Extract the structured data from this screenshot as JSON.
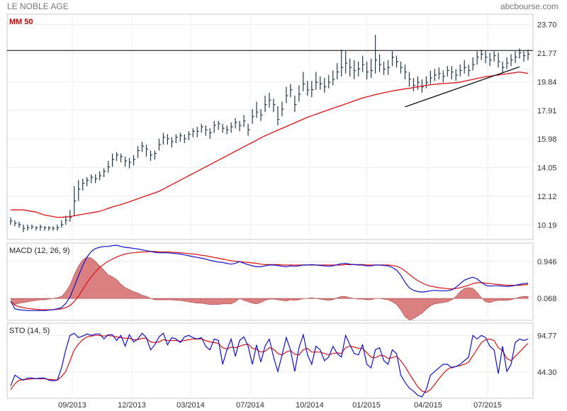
{
  "header": {
    "title": "LE NOBLE AGE",
    "source": "abcbourse.com"
  },
  "colors": {
    "price": "#1f3a4d",
    "ma": "#dd1111",
    "macd": "#1111cc",
    "signal": "#dd1111",
    "hist": "#d46a6a",
    "sto_k": "#1111cc",
    "sto_d": "#dd1111",
    "resistance": "#000000",
    "trend": "#000000"
  },
  "chart_data": [
    {
      "type": "line",
      "panel": "price",
      "label": "MM 50",
      "y_ticks": [
        "23.70",
        "21.77",
        "19.84",
        "17.91",
        "15.98",
        "14.05",
        "12.12",
        "10.19"
      ],
      "ylim": [
        9.2,
        24.4
      ],
      "x_ticks": [
        "09/2013",
        "12/2013",
        "03/2014",
        "07/2014",
        "10/2014",
        "01/2015",
        "04/2015",
        "07/2015"
      ],
      "price_close": [
        10.45,
        10.3,
        10.2,
        9.95,
        10.0,
        10.05,
        10.0,
        10.05,
        10.0,
        9.98,
        9.95,
        10.0,
        10.2,
        10.5,
        10.7,
        11.8,
        12.6,
        13.0,
        13.2,
        13.4,
        13.3,
        13.5,
        13.8,
        14.1,
        14.6,
        14.9,
        14.8,
        14.5,
        14.4,
        14.6,
        15.2,
        15.5,
        15.3,
        14.9,
        15.0,
        15.6,
        16.1,
        16.0,
        15.8,
        16.1,
        16.2,
        16.0,
        16.3,
        16.5,
        16.5,
        16.8,
        16.6,
        16.4,
        16.9,
        17.0,
        16.7,
        16.6,
        16.8,
        17.1,
        16.9,
        17.2,
        16.6,
        17.5,
        17.8,
        17.6,
        18.3,
        18.6,
        18.3,
        17.3,
        18.0,
        18.9,
        19.3,
        18.3,
        19.0,
        19.7,
        19.3,
        19.3,
        19.8,
        19.7,
        19.5,
        19.8,
        20.0,
        20.5,
        20.8,
        21.1,
        20.8,
        20.6,
        20.7,
        21.0,
        20.5,
        20.6,
        21.3,
        21.0,
        20.7,
        20.8,
        21.5,
        21.2,
        20.8,
        20.5,
        20.0,
        19.6,
        19.8,
        19.5,
        19.8,
        20.1,
        20.3,
        20.4,
        20.2,
        20.6,
        20.5,
        20.3,
        20.6,
        20.8,
        20.6,
        21.0,
        21.5,
        21.7,
        21.5,
        21.3,
        21.6,
        21.2,
        20.8,
        21.1,
        21.3,
        21.5,
        21.8,
        21.6,
        21.7
      ],
      "price_high": [
        10.7,
        10.5,
        10.4,
        10.2,
        10.2,
        10.2,
        10.1,
        10.2,
        10.1,
        10.1,
        10.1,
        10.2,
        10.5,
        10.8,
        11.2,
        12.8,
        13.2,
        13.3,
        13.4,
        13.6,
        13.6,
        13.8,
        14.0,
        14.5,
        15.0,
        15.1,
        15.0,
        14.8,
        14.7,
        14.9,
        15.5,
        15.8,
        15.6,
        15.2,
        15.2,
        16.0,
        16.4,
        16.3,
        16.1,
        16.3,
        16.4,
        16.3,
        16.5,
        16.7,
        16.8,
        17.0,
        16.9,
        16.7,
        17.2,
        17.2,
        17.0,
        16.9,
        17.1,
        17.4,
        17.2,
        17.6,
        17.0,
        18.0,
        18.5,
        18.0,
        18.9,
        19.1,
        18.7,
        18.2,
        18.5,
        19.5,
        19.7,
        18.9,
        19.6,
        20.5,
        19.9,
        19.9,
        20.5,
        20.2,
        20.1,
        20.3,
        20.6,
        21.1,
        22.0,
        21.9,
        21.4,
        21.3,
        21.2,
        21.6,
        21.2,
        21.4,
        23.0,
        21.7,
        21.2,
        21.3,
        21.9,
        21.6,
        21.2,
        21.0,
        20.5,
        20.1,
        20.2,
        20.0,
        20.2,
        20.6,
        20.7,
        20.8,
        20.6,
        20.9,
        20.9,
        20.7,
        21.0,
        21.3,
        21.0,
        21.5,
        21.9,
        22.0,
        21.9,
        21.8,
        21.9,
        21.8,
        21.2,
        21.5,
        21.7,
        21.9,
        22.1,
        21.9,
        22.0
      ],
      "price_low": [
        10.2,
        10.1,
        10.0,
        9.7,
        9.8,
        9.9,
        9.8,
        9.8,
        9.8,
        9.8,
        9.8,
        9.8,
        10.0,
        10.2,
        10.4,
        10.8,
        11.8,
        12.5,
        12.8,
        13.0,
        13.0,
        13.2,
        13.4,
        13.7,
        14.1,
        14.5,
        14.4,
        14.1,
        14.0,
        14.2,
        14.7,
        15.1,
        14.8,
        14.5,
        14.6,
        15.2,
        15.6,
        15.6,
        15.4,
        15.7,
        15.8,
        15.7,
        15.9,
        16.1,
        16.1,
        16.4,
        16.2,
        16.0,
        16.4,
        16.6,
        16.4,
        16.3,
        16.4,
        16.7,
        16.5,
        16.8,
        16.2,
        17.0,
        17.4,
        17.2,
        17.8,
        18.1,
        17.8,
        16.9,
        17.5,
        18.4,
        18.8,
        17.8,
        18.5,
        19.2,
        18.9,
        18.8,
        19.3,
        19.3,
        19.1,
        19.4,
        19.6,
        20.0,
        20.2,
        20.4,
        20.2,
        20.0,
        20.2,
        20.5,
        20.0,
        20.1,
        20.4,
        20.5,
        20.3,
        20.3,
        20.9,
        20.8,
        20.4,
        20.0,
        19.5,
        19.2,
        19.3,
        19.1,
        19.4,
        19.7,
        19.9,
        20.0,
        19.8,
        20.2,
        20.0,
        19.9,
        20.2,
        20.4,
        20.2,
        20.6,
        21.0,
        21.3,
        21.1,
        20.9,
        21.2,
        20.8,
        20.4,
        20.7,
        20.9,
        21.1,
        21.4,
        21.2,
        21.3
      ],
      "ma_50": [
        11.2,
        11.2,
        11.2,
        11.2,
        11.15,
        11.1,
        11.05,
        10.95,
        10.85,
        10.8,
        10.75,
        10.7,
        10.7,
        10.72,
        10.75,
        10.8,
        10.85,
        10.9,
        10.95,
        11.0,
        11.05,
        11.1,
        11.2,
        11.3,
        11.4,
        11.48,
        11.55,
        11.65,
        11.75,
        11.85,
        11.95,
        12.05,
        12.15,
        12.25,
        12.35,
        12.45,
        12.6,
        12.75,
        12.9,
        13.05,
        13.2,
        13.35,
        13.5,
        13.65,
        13.8,
        13.95,
        14.1,
        14.25,
        14.4,
        14.55,
        14.7,
        14.85,
        15.0,
        15.15,
        15.3,
        15.45,
        15.6,
        15.75,
        15.9,
        16.05,
        16.2,
        16.32,
        16.45,
        16.58,
        16.7,
        16.82,
        16.95,
        17.07,
        17.2,
        17.32,
        17.45,
        17.55,
        17.65,
        17.75,
        17.85,
        17.95,
        18.05,
        18.15,
        18.25,
        18.35,
        18.45,
        18.55,
        18.65,
        18.75,
        18.82,
        18.9,
        18.97,
        19.03,
        19.1,
        19.16,
        19.22,
        19.27,
        19.32,
        19.36,
        19.4,
        19.45,
        19.5,
        19.55,
        19.6,
        19.64,
        19.67,
        19.7,
        19.72,
        19.74,
        19.76,
        19.78,
        19.82,
        19.88,
        19.94,
        20.0,
        20.06,
        20.12,
        20.18,
        20.22,
        20.26,
        20.3,
        20.34,
        20.38,
        20.42,
        20.46,
        20.5,
        20.45,
        20.4
      ],
      "resistance_level": 21.95,
      "trendline": [
        [
          93,
          18.15
        ],
        [
          120,
          20.85
        ]
      ]
    },
    {
      "type": "line",
      "panel": "macd",
      "label": "MACD (12, 26, 9)",
      "y_ticks": [
        "0.946",
        "0.068"
      ],
      "ylim": [
        -0.45,
        1.38
      ],
      "macd": [
        0.01,
        -0.18,
        -0.2,
        -0.21,
        -0.22,
        -0.22,
        -0.22,
        -0.22,
        -0.22,
        -0.21,
        -0.2,
        -0.18,
        -0.15,
        -0.05,
        0.1,
        0.35,
        0.6,
        0.85,
        1.05,
        1.18,
        1.25,
        1.28,
        1.3,
        1.3,
        1.32,
        1.33,
        1.3,
        1.28,
        1.27,
        1.25,
        1.24,
        1.22,
        1.2,
        1.18,
        1.16,
        1.15,
        1.15,
        1.15,
        1.14,
        1.13,
        1.12,
        1.1,
        1.08,
        1.06,
        1.04,
        1.02,
        1.0,
        0.97,
        0.95,
        0.93,
        0.92,
        0.9,
        0.88,
        0.9,
        0.94,
        0.9,
        0.87,
        0.84,
        0.82,
        0.82,
        0.84,
        0.86,
        0.86,
        0.85,
        0.83,
        0.82,
        0.84,
        0.83,
        0.84,
        0.86,
        0.86,
        0.87,
        0.86,
        0.85,
        0.84,
        0.83,
        0.84,
        0.87,
        0.89,
        0.9,
        0.88,
        0.87,
        0.86,
        0.86,
        0.84,
        0.84,
        0.86,
        0.86,
        0.85,
        0.84,
        0.8,
        0.74,
        0.62,
        0.45,
        0.32,
        0.26,
        0.23,
        0.22,
        0.23,
        0.25,
        0.26,
        0.25,
        0.25,
        0.25,
        0.27,
        0.33,
        0.42,
        0.5,
        0.54,
        0.57,
        0.53,
        0.45,
        0.38,
        0.36,
        0.37,
        0.37,
        0.36,
        0.35,
        0.36,
        0.38,
        0.4,
        0.42,
        0.43
      ],
      "signal": [
        0.01,
        -0.09,
        -0.13,
        -0.15,
        -0.17,
        -0.18,
        -0.19,
        -0.2,
        -0.2,
        -0.2,
        -0.2,
        -0.19,
        -0.18,
        -0.15,
        -0.1,
        0.0,
        0.12,
        0.28,
        0.44,
        0.58,
        0.7,
        0.8,
        0.88,
        0.95,
        1.0,
        1.05,
        1.09,
        1.12,
        1.14,
        1.15,
        1.16,
        1.17,
        1.17,
        1.18,
        1.18,
        1.17,
        1.17,
        1.17,
        1.16,
        1.16,
        1.15,
        1.14,
        1.13,
        1.12,
        1.11,
        1.09,
        1.08,
        1.06,
        1.04,
        1.02,
        1.0,
        0.98,
        0.96,
        0.95,
        0.94,
        0.93,
        0.92,
        0.91,
        0.9,
        0.88,
        0.87,
        0.87,
        0.87,
        0.87,
        0.86,
        0.86,
        0.86,
        0.86,
        0.86,
        0.86,
        0.86,
        0.86,
        0.86,
        0.86,
        0.86,
        0.86,
        0.86,
        0.86,
        0.86,
        0.87,
        0.87,
        0.87,
        0.87,
        0.87,
        0.86,
        0.86,
        0.86,
        0.86,
        0.86,
        0.86,
        0.85,
        0.83,
        0.79,
        0.72,
        0.64,
        0.56,
        0.49,
        0.44,
        0.39,
        0.36,
        0.34,
        0.32,
        0.31,
        0.3,
        0.29,
        0.3,
        0.32,
        0.35,
        0.38,
        0.42,
        0.44,
        0.44,
        0.43,
        0.42,
        0.41,
        0.4,
        0.39,
        0.38,
        0.38,
        0.38,
        0.38,
        0.39,
        0.4
      ]
    },
    {
      "type": "line",
      "panel": "sto",
      "label": "STO (14, 5)",
      "y_ticks": [
        "94.77",
        "44.30"
      ],
      "ylim": [
        8,
        112
      ],
      "k": [
        25,
        40,
        36,
        33,
        36,
        36,
        35,
        36,
        36,
        33,
        32,
        33,
        50,
        75,
        95,
        98,
        92,
        94,
        97,
        95,
        97,
        97,
        90,
        96,
        96,
        88,
        95,
        80,
        96,
        86,
        90,
        98,
        92,
        75,
        82,
        93,
        98,
        82,
        92,
        90,
        85,
        93,
        95,
        92,
        90,
        92,
        80,
        75,
        90,
        88,
        55,
        75,
        90,
        66,
        88,
        93,
        80,
        55,
        82,
        58,
        80,
        90,
        65,
        45,
        68,
        92,
        75,
        45,
        78,
        96,
        68,
        55,
        80,
        75,
        60,
        65,
        80,
        70,
        65,
        95,
        82,
        70,
        68,
        82,
        55,
        50,
        75,
        78,
        60,
        55,
        75,
        70,
        40,
        30,
        22,
        18,
        12,
        10,
        20,
        40,
        45,
        50,
        55,
        55,
        50,
        52,
        55,
        60,
        65,
        95,
        90,
        95,
        92,
        80,
        75,
        42,
        80,
        45,
        55,
        85,
        90,
        88,
        90
      ],
      "d": [
        20,
        28,
        33,
        34,
        34,
        35,
        35,
        35,
        35,
        34,
        34,
        33,
        38,
        45,
        60,
        75,
        83,
        89,
        93,
        94,
        95,
        95,
        94,
        95,
        94,
        93,
        92,
        91,
        91,
        89,
        89,
        91,
        91,
        86,
        85,
        86,
        89,
        88,
        88,
        88,
        87,
        88,
        89,
        90,
        90,
        90,
        88,
        86,
        85,
        84,
        78,
        76,
        79,
        78,
        80,
        82,
        83,
        77,
        76,
        72,
        73,
        78,
        76,
        70,
        68,
        72,
        74,
        69,
        68,
        75,
        77,
        72,
        72,
        72,
        70,
        68,
        70,
        71,
        70,
        78,
        80,
        79,
        77,
        77,
        71,
        65,
        64,
        67,
        67,
        63,
        64,
        66,
        60,
        52,
        42,
        33,
        24,
        18,
        16,
        20,
        27,
        35,
        42,
        48,
        51,
        52,
        53,
        55,
        58,
        67,
        76,
        85,
        89,
        90,
        88,
        78,
        74,
        63,
        60,
        66,
        72,
        78,
        84
      ]
    }
  ]
}
